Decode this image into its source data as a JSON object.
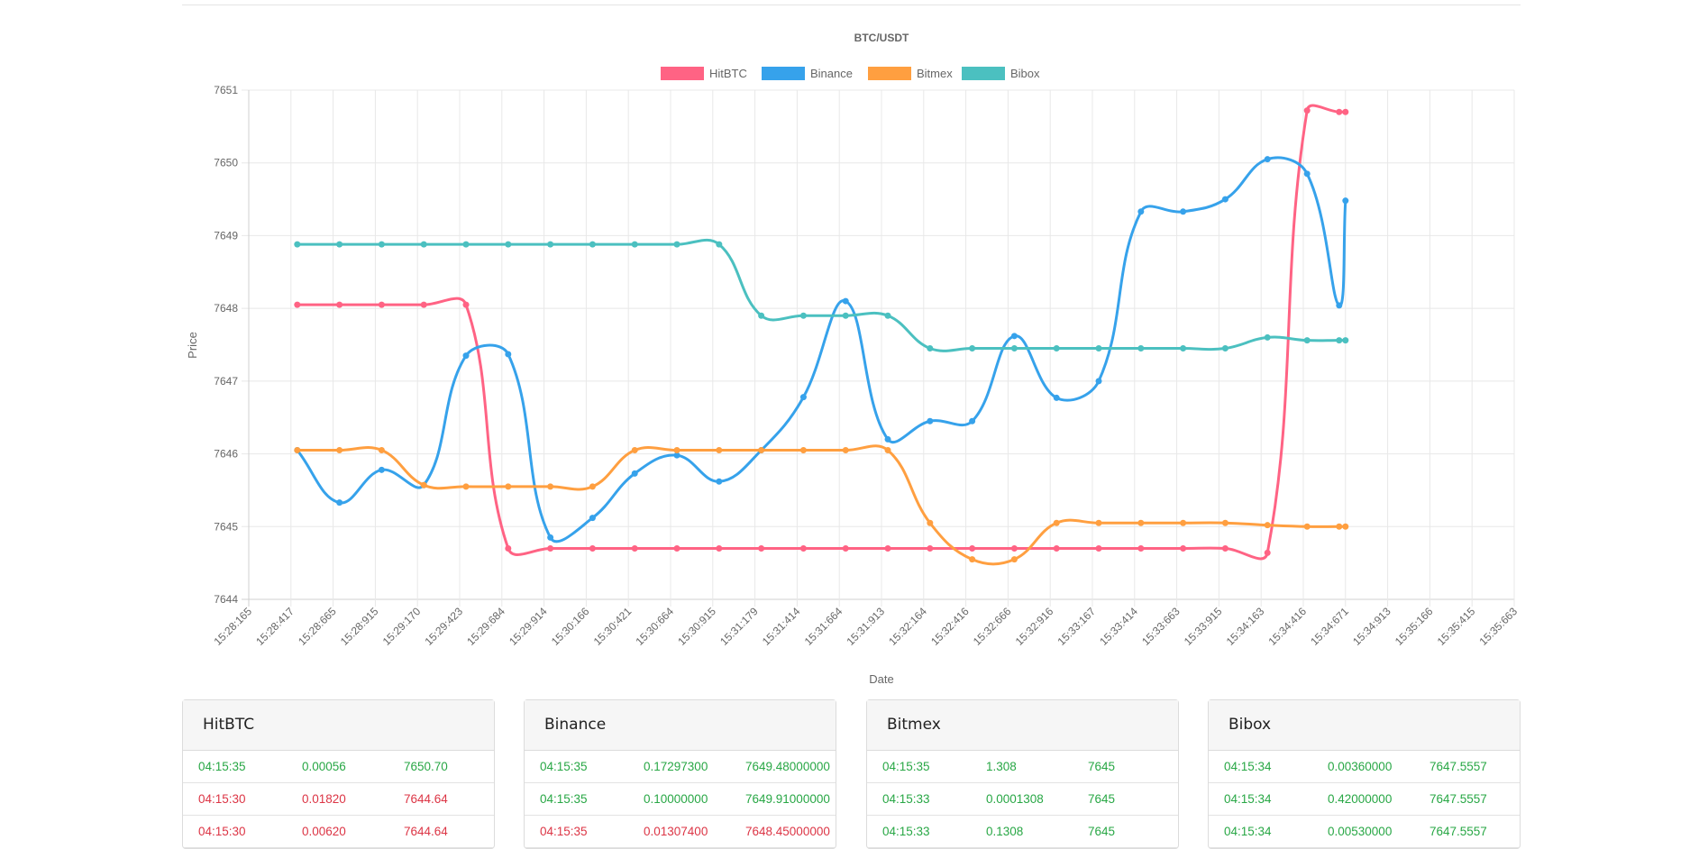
{
  "chart_data": {
    "type": "line",
    "title": "BTC/USDT",
    "xlabel": "Date",
    "ylabel": "Price",
    "ylim": [
      7644,
      7651
    ],
    "yticks": [
      7644,
      7645,
      7646,
      7647,
      7648,
      7649,
      7650,
      7651
    ],
    "grid": true,
    "legend_position": "top",
    "x_tick_labels": [
      "15:28:165",
      "15:28:417",
      "15:28:665",
      "15:28:915",
      "15:29:170",
      "15:29:423",
      "15:29:684",
      "15:29:914",
      "15:30:166",
      "15:30:421",
      "15:30:664",
      "15:30:915",
      "15:31:179",
      "15:31:414",
      "15:31:664",
      "15:31:913",
      "15:32:164",
      "15:32:416",
      "15:32:666",
      "15:32:916",
      "15:33:167",
      "15:33:414",
      "15:33:663",
      "15:33:915",
      "15:34:163",
      "15:34:416",
      "15:34:671",
      "15:34:913",
      "15:35:166",
      "15:35:415",
      "15:35:663"
    ],
    "x_note": "x values are positions in tick-label index units",
    "x": [
      1.15,
      2.15,
      3.15,
      4.15,
      5.15,
      6.15,
      7.15,
      8.15,
      9.15,
      10.15,
      11.15,
      12.15,
      13.15,
      14.15,
      15.15,
      16.15,
      17.15,
      18.15,
      19.15,
      20.15,
      21.15,
      22.15,
      23.15,
      24.15,
      25.09,
      25.85,
      26.0
    ],
    "series": [
      {
        "name": "HitBTC",
        "color": "#ff6384",
        "values": [
          7648.05,
          7648.05,
          7648.05,
          7648.05,
          7648.05,
          7644.7,
          7644.7,
          7644.7,
          7644.7,
          7644.7,
          7644.7,
          7644.7,
          7644.7,
          7644.7,
          7644.7,
          7644.7,
          7644.7,
          7644.7,
          7644.7,
          7644.7,
          7644.7,
          7644.7,
          7644.7,
          7644.64,
          7650.72,
          7650.7,
          7650.7
        ]
      },
      {
        "name": "Binance",
        "color": "#36a2eb",
        "values": [
          7646.05,
          7645.33,
          7645.78,
          7645.57,
          7647.35,
          7647.37,
          7644.85,
          7645.12,
          7645.73,
          7645.98,
          7645.62,
          7646.05,
          7646.78,
          7648.1,
          7646.2,
          7646.45,
          7646.45,
          7647.62,
          7646.77,
          7647.0,
          7649.33,
          7649.33,
          7649.5,
          7650.05,
          7649.85,
          7648.04,
          7649.48
        ]
      },
      {
        "name": "Bitmex",
        "color": "#ff9f40",
        "values": [
          7646.05,
          7646.05,
          7646.05,
          7645.57,
          7645.55,
          7645.55,
          7645.55,
          7645.55,
          7646.05,
          7646.05,
          7646.05,
          7646.05,
          7646.05,
          7646.05,
          7646.05,
          7645.05,
          7644.55,
          7644.55,
          7645.05,
          7645.05,
          7645.05,
          7645.05,
          7645.05,
          7645.02,
          7645.0,
          7645.0,
          7645.0
        ]
      },
      {
        "name": "Bibox",
        "color": "#4bc0c0",
        "values": [
          7648.88,
          7648.88,
          7648.88,
          7648.88,
          7648.88,
          7648.88,
          7648.88,
          7648.88,
          7648.88,
          7648.88,
          7648.88,
          7647.9,
          7647.9,
          7647.9,
          7647.9,
          7647.45,
          7647.45,
          7647.45,
          7647.45,
          7647.45,
          7647.45,
          7647.45,
          7647.45,
          7647.6,
          7647.56,
          7647.56,
          7647.56
        ]
      }
    ]
  },
  "trades": [
    {
      "name": "HitBTC",
      "rows": [
        {
          "time": "04:15:35",
          "amount": "0.00056",
          "price": "7650.70",
          "side": "buy"
        },
        {
          "time": "04:15:30",
          "amount": "0.01820",
          "price": "7644.64",
          "side": "sell"
        },
        {
          "time": "04:15:30",
          "amount": "0.00620",
          "price": "7644.64",
          "side": "sell"
        }
      ]
    },
    {
      "name": "Binance",
      "rows": [
        {
          "time": "04:15:35",
          "amount": "0.17297300",
          "price": "7649.48000000",
          "side": "buy"
        },
        {
          "time": "04:15:35",
          "amount": "0.10000000",
          "price": "7649.91000000",
          "side": "buy"
        },
        {
          "time": "04:15:35",
          "amount": "0.01307400",
          "price": "7648.45000000",
          "side": "sell"
        }
      ]
    },
    {
      "name": "Bitmex",
      "rows": [
        {
          "time": "04:15:35",
          "amount": "1.308",
          "price": "7645",
          "side": "buy"
        },
        {
          "time": "04:15:33",
          "amount": "0.0001308",
          "price": "7645",
          "side": "buy"
        },
        {
          "time": "04:15:33",
          "amount": "0.1308",
          "price": "7645",
          "side": "buy"
        }
      ]
    },
    {
      "name": "Bibox",
      "rows": [
        {
          "time": "04:15:34",
          "amount": "0.00360000",
          "price": "7647.5557",
          "side": "buy"
        },
        {
          "time": "04:15:34",
          "amount": "0.42000000",
          "price": "7647.5557",
          "side": "buy"
        },
        {
          "time": "04:15:34",
          "amount": "0.00530000",
          "price": "7647.5557",
          "side": "buy"
        }
      ]
    }
  ]
}
